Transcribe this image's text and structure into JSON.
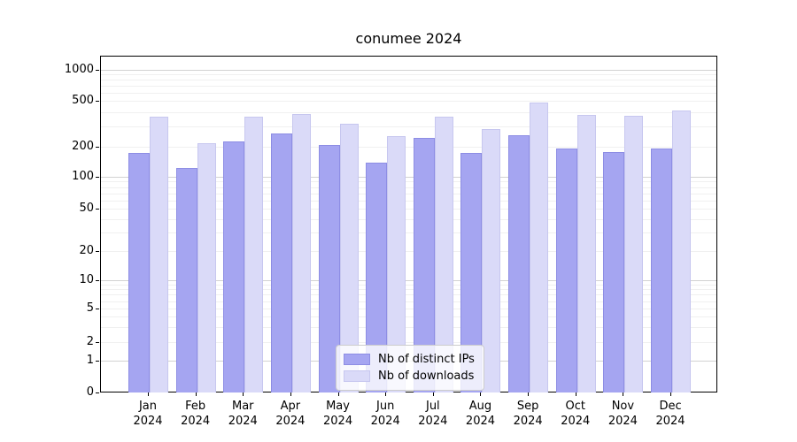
{
  "title": "conumee 2024",
  "legend": [
    {
      "label": "Nb of distinct IPs",
      "color": "#a5a5f1",
      "edge": "#8d8de4"
    },
    {
      "label": "Nb of downloads",
      "color": "#dadaf8",
      "edge": "#c7c7ef"
    }
  ],
  "y_axis": {
    "tick_labels": [
      "1000",
      "500",
      "200",
      "100",
      "50",
      "20",
      "10",
      "5",
      "2",
      "1",
      "0"
    ]
  },
  "chart_data": {
    "type": "bar",
    "title": "conumee 2024",
    "categories": [
      "Jan 2024",
      "Feb 2024",
      "Mar 2024",
      "Apr 2024",
      "May 2024",
      "Jun 2024",
      "Jul 2024",
      "Aug 2024",
      "Sep 2024",
      "Oct 2024",
      "Nov 2024",
      "Dec 2024"
    ],
    "series": [
      {
        "name": "Nb of distinct IPs",
        "color": "#a5a5f1",
        "values": [
          178,
          126,
          228,
          264,
          210,
          142,
          242,
          176,
          256,
          196,
          182,
          196
        ]
      },
      {
        "name": "Nb of downloads",
        "color": "#dadaf8",
        "values": [
          370,
          218,
          368,
          392,
          320,
          252,
          370,
          290,
          490,
          382,
          376,
          420
        ]
      }
    ],
    "xlabel": "",
    "ylabel": "",
    "yscale": "log-with-zero",
    "yticks": [
      0,
      1,
      2,
      5,
      10,
      20,
      50,
      100,
      200,
      500,
      1000
    ],
    "ylim": [
      0,
      1400
    ],
    "grid": true,
    "legend_position": "lower center"
  }
}
